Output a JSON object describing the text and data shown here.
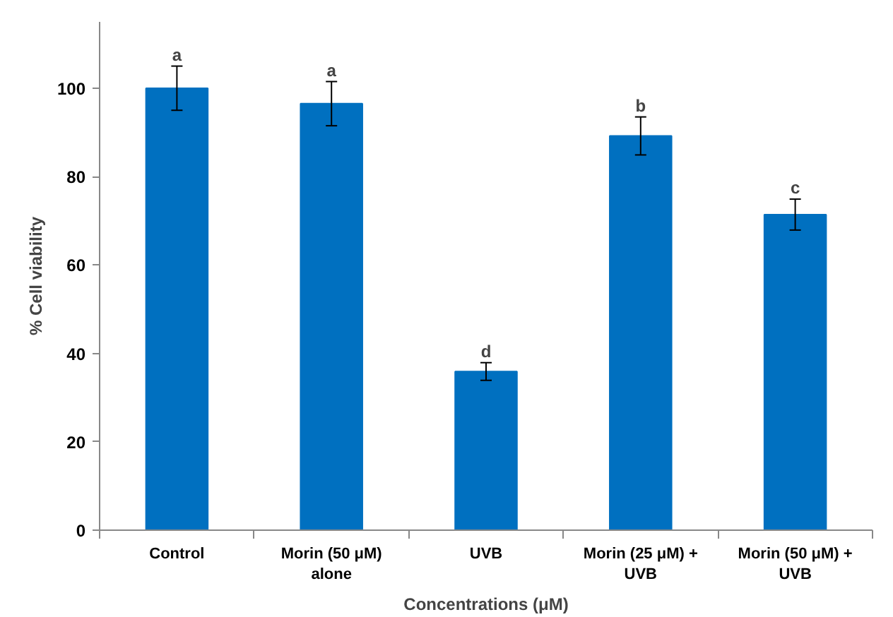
{
  "chart_data": {
    "type": "bar",
    "xlabel": "Concentrations (μM)",
    "ylabel": "% Cell viability",
    "categories": [
      "Control",
      "Morin (50 μM)\nalone",
      "UVB",
      "Morin (25 μM) +\nUVB",
      "Morin (50 μM) +\nUVB"
    ],
    "values": [
      100,
      96.5,
      35.9,
      89.2,
      71.4
    ],
    "errors": [
      5,
      5,
      2,
      4.3,
      3.5
    ],
    "color": "#0070c0",
    "ylim": [
      0,
      115
    ],
    "yticks": [
      0,
      20,
      40,
      60,
      80,
      100
    ],
    "grid": false,
    "annotations": [
      {
        "text": "a",
        "x": "Control",
        "y": 105
      },
      {
        "text": "a",
        "x": "Morin (50 μM)\nalone",
        "y": 101.5
      },
      {
        "text": "d",
        "x": "UVB",
        "y": 37.9
      },
      {
        "text": "b",
        "x": "Morin (25 μM) +\nUVB",
        "y": 93.5
      },
      {
        "text": "c",
        "x": "Morin (50 μM) +\nUVB",
        "y": 74.9
      }
    ]
  }
}
